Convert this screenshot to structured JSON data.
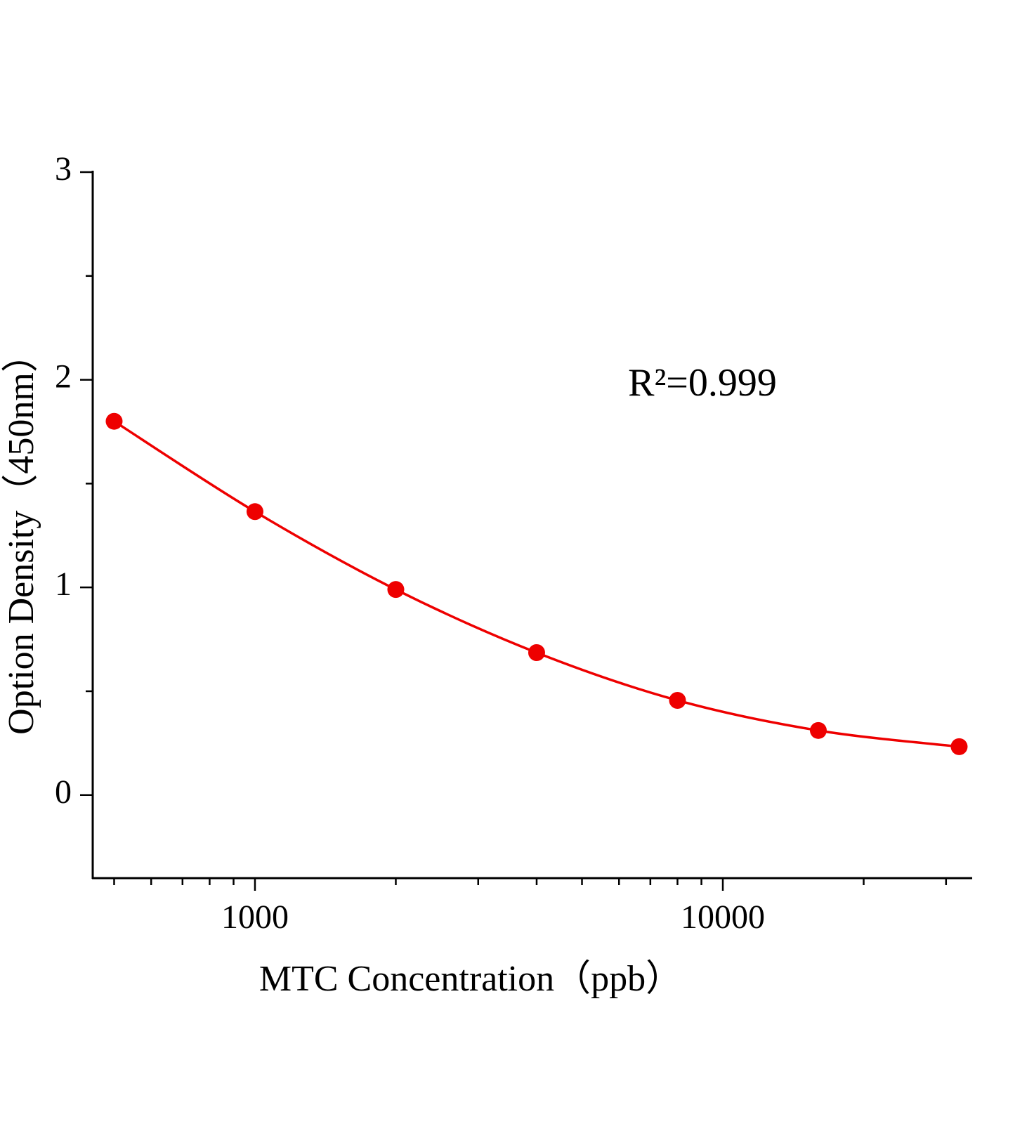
{
  "chart_data": {
    "type": "scatter",
    "x_label": "MTC  Concentration（ppb）",
    "y_label": "Option Density（450nm）",
    "annotation": "R²=0.999",
    "x": [
      500,
      1000,
      2000,
      4000,
      8000,
      16000,
      32000
    ],
    "values": [
      1.8,
      1.365,
      0.99,
      0.686,
      0.456,
      0.311,
      0.233
    ],
    "color": "#ee0000",
    "fit_line": true,
    "x_log": true,
    "xlim": [
      450,
      34000
    ],
    "ylim": [
      -0.4,
      3
    ],
    "xticks": [
      1000,
      10000
    ],
    "xminorticks": [
      500,
      600,
      700,
      800,
      900,
      2000,
      3000,
      4000,
      5000,
      6000,
      7000,
      8000,
      9000,
      20000,
      30000
    ],
    "yticks": [
      0,
      1,
      2,
      3
    ],
    "yminorticks": [
      0.5,
      1.5,
      2.5
    ]
  }
}
